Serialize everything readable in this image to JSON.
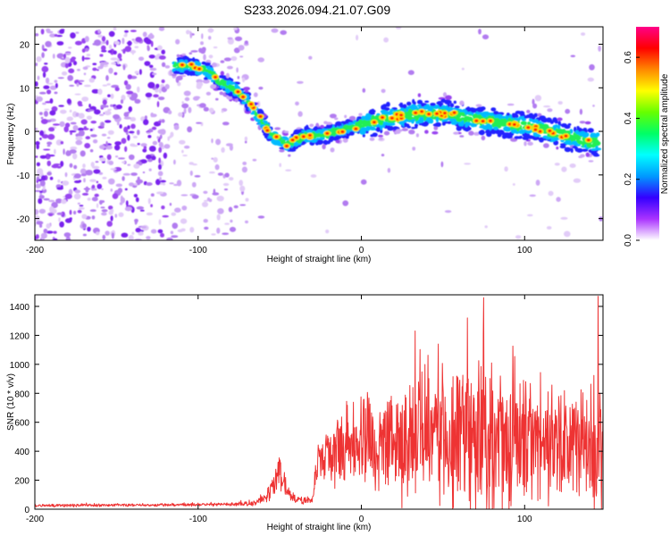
{
  "title": "S233.2026.094.21.07.G09",
  "colors": {
    "snr_line": "#ee3333",
    "ridge": [
      "#2222ff",
      "#00bbff",
      "#22ee55",
      "#ffdd00",
      "#ff2200"
    ],
    "scatter": [
      "#7a22ee",
      "#9944f0",
      "#b27cf0",
      "#cda8f5",
      "#e2ccf8"
    ],
    "colorbar_stops": [
      "#ffffff",
      "#aa33ff",
      "#3300ff",
      "#0099ff",
      "#00ffff",
      "#00ff66",
      "#66ff00",
      "#ffff00",
      "#ff8800",
      "#ff0000",
      "#ff0088"
    ]
  },
  "chart_data": [
    {
      "type": "heatmap",
      "title": "S233.2026.094.21.07.G09",
      "xlabel": "Height of straight line (km)",
      "ylabel": "Frequency (Hz)",
      "xlim": [
        -200,
        148
      ],
      "ylim": [
        -25,
        24
      ],
      "xticks": [
        -200,
        -100,
        0,
        100
      ],
      "yticks": [
        20,
        10,
        0,
        -10,
        -20
      ],
      "xtick_labels": [
        "-200",
        "-100",
        "0",
        "100"
      ],
      "ytick_labels": [
        "20",
        "10",
        "0",
        "-10",
        "-20"
      ],
      "ridge": {
        "x": [
          -115,
          -105,
          -95,
          -85,
          -75,
          -68,
          -62,
          -55,
          -45,
          -35,
          -25,
          -15,
          -5,
          5,
          15,
          25,
          35,
          45,
          55,
          65,
          75,
          85,
          95,
          105,
          115,
          125,
          135,
          145
        ],
        "y": [
          15,
          15,
          14,
          11,
          9,
          6,
          3,
          -1,
          -3,
          -1,
          -1,
          0,
          1,
          2,
          3,
          3.5,
          4,
          4,
          4,
          3,
          2.5,
          2,
          1.5,
          1,
          0,
          -1,
          -2,
          -2.5
        ]
      },
      "colorbar": {
        "label": "Normalized spectral amplitude",
        "range": [
          0,
          0.7
        ],
        "ticks": [
          0.0,
          0.2,
          0.4,
          0.6
        ],
        "tick_labels": [
          "0.0",
          "0.2",
          "0.4",
          "0.6"
        ]
      }
    },
    {
      "type": "line",
      "xlabel": "Height of straight line (km)",
      "ylabel": "SNR (10 * v/v)",
      "xlim": [
        -200,
        148
      ],
      "ylim": [
        0,
        1480
      ],
      "xticks": [
        -200,
        -100,
        0,
        100
      ],
      "yticks": [
        0,
        200,
        400,
        600,
        800,
        1000,
        1200,
        1400
      ],
      "xtick_labels": [
        "-200",
        "-100",
        "0",
        "100"
      ],
      "ytick_labels": [
        "0",
        "200",
        "400",
        "600",
        "800",
        "1000",
        "1200",
        "1400"
      ],
      "series": [
        {
          "name": "SNR",
          "x": [
            -200,
            -150,
            -100,
            -80,
            -65,
            -58,
            -50,
            -45,
            -40,
            -30,
            -27,
            -20,
            -10,
            0,
            10,
            20,
            30,
            40,
            50,
            60,
            70,
            80,
            90,
            100,
            110,
            120,
            130,
            140,
            148
          ],
          "base": [
            25,
            28,
            30,
            35,
            40,
            80,
            260,
            120,
            60,
            60,
            320,
            380,
            420,
            450,
            460,
            470,
            480,
            490,
            500,
            500,
            500,
            480,
            470,
            460,
            450,
            440,
            430,
            420,
            410
          ],
          "amp": [
            12,
            12,
            12,
            15,
            20,
            50,
            150,
            60,
            30,
            30,
            160,
            240,
            330,
            380,
            420,
            460,
            500,
            530,
            560,
            600,
            620,
            580,
            540,
            520,
            500,
            480,
            460,
            500,
            520
          ],
          "peaks": [
            {
              "x": 75,
              "y": 1460
            },
            {
              "x": 145,
              "y": 1470
            },
            {
              "x": 65,
              "y": 1320
            },
            {
              "x": 33,
              "y": 1230
            },
            {
              "x": 47,
              "y": 1140
            }
          ]
        }
      ]
    }
  ]
}
